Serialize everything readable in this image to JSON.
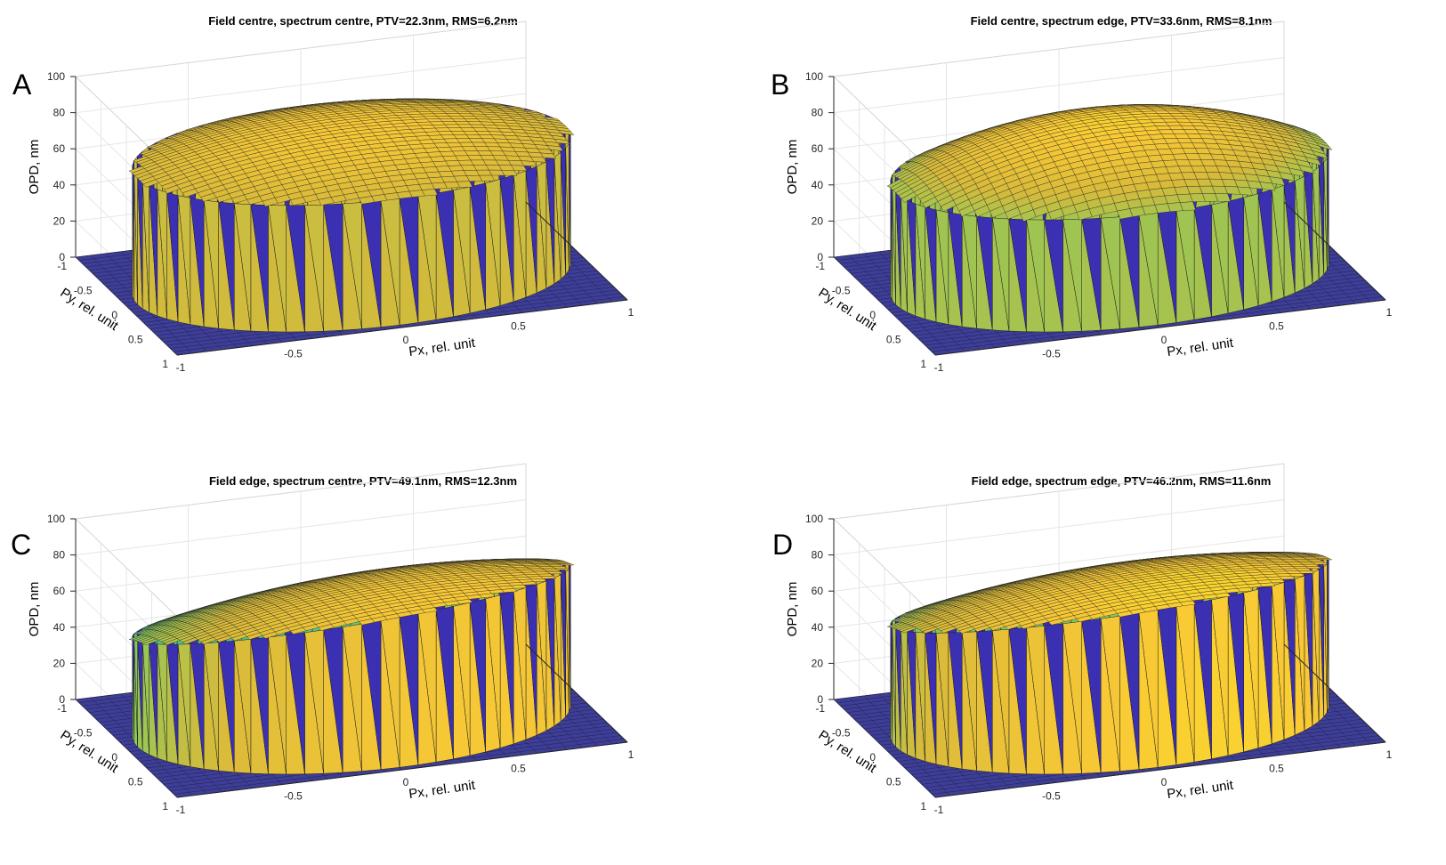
{
  "chart_data": [
    {
      "type": "surface3d",
      "panel_label": "A",
      "title": "Field centre, spectrum centre, PTV=22.3nm, RMS=6.2nm",
      "xlabel": "Px, rel. unit",
      "ylabel": "Py, rel. unit",
      "zlabel": "OPD, nm",
      "xlim": [
        -1,
        1
      ],
      "ylim": [
        -1,
        1
      ],
      "zlim": [
        0,
        100
      ],
      "x_ticks": [
        "-1",
        "-0.5",
        "0",
        "0.5",
        "1"
      ],
      "y_ticks": [
        "-1",
        "-0.5",
        "0",
        "0.5",
        "1"
      ],
      "z_ticks": [
        "0",
        "20",
        "40",
        "60",
        "80",
        "100"
      ],
      "grid": true,
      "pupil_radius": 0.95,
      "surface": {
        "base": 85,
        "tilt_x": 0,
        "tilt_y": 0,
        "curvature": -15,
        "ptv_nm": 22.3,
        "rms_nm": 6.2
      }
    },
    {
      "type": "surface3d",
      "panel_label": "B",
      "title": "Field centre, spectrum edge, PTV=33.6nm, RMS=8.1nm",
      "xlabel": "Px, rel. unit",
      "ylabel": "Py, rel. unit",
      "zlabel": "OPD, nm",
      "xlim": [
        -1,
        1
      ],
      "ylim": [
        -1,
        1
      ],
      "zlim": [
        0,
        100
      ],
      "x_ticks": [
        "-1",
        "-0.5",
        "0",
        "0.5",
        "1"
      ],
      "y_ticks": [
        "-1",
        "-0.5",
        "0",
        "0.5",
        "1"
      ],
      "z_ticks": [
        "0",
        "20",
        "40",
        "60",
        "80",
        "100"
      ],
      "grid": true,
      "pupil_radius": 0.95,
      "surface": {
        "base": 88,
        "tilt_x": 0,
        "tilt_y": 0,
        "curvature": -26,
        "ptv_nm": 33.6,
        "rms_nm": 8.1
      }
    },
    {
      "type": "surface3d",
      "panel_label": "C",
      "title": "Field edge, spectrum centre, PTV=49.1nm, RMS=12.3nm",
      "xlabel": "Px, rel. unit",
      "ylabel": "Py, rel. unit",
      "zlabel": "OPD, nm",
      "xlim": [
        -1,
        1
      ],
      "ylim": [
        -1,
        1
      ],
      "zlim": [
        0,
        100
      ],
      "x_ticks": [
        "-1",
        "-0.5",
        "0",
        "0.5",
        "1"
      ],
      "y_ticks": [
        "-1",
        "-0.5",
        "0",
        "0.5",
        "1"
      ],
      "z_ticks": [
        "0",
        "20",
        "40",
        "60",
        "80",
        "100"
      ],
      "grid": true,
      "pupil_radius": 0.95,
      "surface": {
        "base": 78,
        "tilt_x": 8,
        "tilt_y": 18,
        "curvature": -12,
        "ptv_nm": 49.1,
        "rms_nm": 12.3
      }
    },
    {
      "type": "surface3d",
      "panel_label": "D",
      "title": "Field edge, spectrum edge, PTV=46.2nm, RMS=11.6nm",
      "xlabel": "Px, rel. unit",
      "ylabel": "Py, rel. unit",
      "zlabel": "OPD, nm",
      "xlim": [
        -1,
        1
      ],
      "ylim": [
        -1,
        1
      ],
      "zlim": [
        0,
        100
      ],
      "x_ticks": [
        "-1",
        "-0.5",
        "0",
        "0.5",
        "1"
      ],
      "y_ticks": [
        "-1",
        "-0.5",
        "0",
        "0.5",
        "1"
      ],
      "z_ticks": [
        "0",
        "20",
        "40",
        "60",
        "80",
        "100"
      ],
      "grid": true,
      "pupil_radius": 0.95,
      "surface": {
        "base": 83,
        "tilt_x": 6,
        "tilt_y": 17,
        "curvature": -12,
        "ptv_nm": 46.2,
        "rms_nm": 11.6
      }
    }
  ],
  "colors": {
    "background": "#ffffff",
    "axis": "#262626",
    "grid": "#e6e6e6",
    "edge": "#1f1f1f",
    "floor": "#3e3e96",
    "colormap": [
      "#3e26a8",
      "#2f6fec",
      "#18a7d8",
      "#32c0a0",
      "#8cc85a",
      "#d9ba3a",
      "#f9c935",
      "#f9fb15"
    ]
  }
}
